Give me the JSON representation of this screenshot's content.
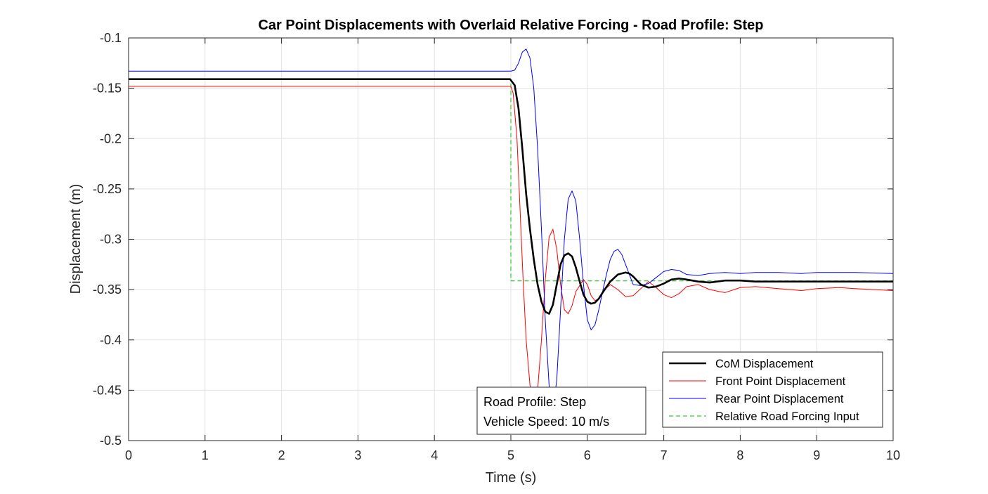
{
  "chart_data": {
    "type": "line",
    "title": "Car Point Displacements with Overlaid Relative Forcing - Road Profile: Step",
    "xlabel": "Time (s)",
    "ylabel": "Displacement (m)",
    "xlim": [
      0,
      10
    ],
    "ylim": [
      -0.5,
      -0.1
    ],
    "xticks": [
      0,
      1,
      2,
      3,
      4,
      5,
      6,
      7,
      8,
      9,
      10
    ],
    "yticks": [
      -0.1,
      -0.15,
      -0.2,
      -0.25,
      -0.3,
      -0.35,
      -0.4,
      -0.45,
      -0.5
    ],
    "grid": true,
    "legend_location": "bottom-right",
    "series": [
      {
        "name": "CoM Displacement",
        "color": "#000000",
        "style": "solid",
        "x": [
          0,
          4.99,
          5.05,
          5.1,
          5.15,
          5.2,
          5.25,
          5.3,
          5.35,
          5.4,
          5.45,
          5.5,
          5.55,
          5.6,
          5.65,
          5.7,
          5.75,
          5.8,
          5.85,
          5.9,
          5.95,
          6.0,
          6.05,
          6.1,
          6.15,
          6.2,
          6.3,
          6.4,
          6.5,
          6.55,
          6.6,
          6.7,
          6.8,
          6.9,
          7.0,
          7.1,
          7.2,
          7.3,
          7.45,
          7.6,
          7.8,
          8.0,
          8.2,
          8.5,
          9.0,
          9.5,
          10.0
        ],
        "y": [
          -0.141,
          -0.141,
          -0.147,
          -0.17,
          -0.21,
          -0.255,
          -0.29,
          -0.32,
          -0.345,
          -0.362,
          -0.372,
          -0.374,
          -0.365,
          -0.345,
          -0.325,
          -0.316,
          -0.314,
          -0.317,
          -0.328,
          -0.342,
          -0.355,
          -0.362,
          -0.364,
          -0.363,
          -0.359,
          -0.353,
          -0.342,
          -0.335,
          -0.333,
          -0.334,
          -0.337,
          -0.345,
          -0.348,
          -0.347,
          -0.344,
          -0.34,
          -0.339,
          -0.34,
          -0.342,
          -0.343,
          -0.341,
          -0.341,
          -0.342,
          -0.342,
          -0.342,
          -0.342,
          -0.342
        ]
      },
      {
        "name": "Front Point Displacement",
        "color": "#ff0000",
        "style": "solid",
        "x": [
          0,
          5.0,
          5.03,
          5.08,
          5.12,
          5.16,
          5.2,
          5.25,
          5.3,
          5.35,
          5.4,
          5.45,
          5.5,
          5.55,
          5.6,
          5.65,
          5.7,
          5.75,
          5.8,
          5.85,
          5.95,
          6.0,
          6.05,
          6.1,
          6.15,
          6.2,
          6.3,
          6.4,
          6.5,
          6.6,
          6.7,
          6.8,
          6.9,
          7.0,
          7.1,
          7.2,
          7.3,
          7.45,
          7.6,
          7.8,
          8.0,
          8.2,
          8.5,
          8.8,
          9.0,
          9.3,
          9.5,
          10.0
        ],
        "y": [
          -0.148,
          -0.148,
          -0.155,
          -0.2,
          -0.27,
          -0.34,
          -0.4,
          -0.445,
          -0.468,
          -0.45,
          -0.4,
          -0.34,
          -0.298,
          -0.29,
          -0.31,
          -0.345,
          -0.37,
          -0.374,
          -0.366,
          -0.352,
          -0.34,
          -0.345,
          -0.356,
          -0.361,
          -0.359,
          -0.352,
          -0.345,
          -0.35,
          -0.357,
          -0.356,
          -0.349,
          -0.342,
          -0.348,
          -0.355,
          -0.358,
          -0.354,
          -0.347,
          -0.345,
          -0.35,
          -0.353,
          -0.348,
          -0.347,
          -0.349,
          -0.351,
          -0.349,
          -0.348,
          -0.349,
          -0.351
        ]
      },
      {
        "name": "Rear Point Displacement",
        "color": "#0000ff",
        "style": "solid",
        "x": [
          0,
          5.0,
          5.05,
          5.1,
          5.15,
          5.2,
          5.25,
          5.3,
          5.35,
          5.4,
          5.45,
          5.5,
          5.55,
          5.6,
          5.65,
          5.7,
          5.75,
          5.8,
          5.85,
          5.9,
          5.95,
          6.0,
          6.05,
          6.1,
          6.15,
          6.2,
          6.25,
          6.3,
          6.35,
          6.4,
          6.45,
          6.5,
          6.55,
          6.6,
          6.7,
          6.8,
          6.9,
          7.0,
          7.1,
          7.2,
          7.3,
          7.45,
          7.6,
          7.8,
          8.0,
          8.2,
          8.5,
          8.8,
          9.0,
          9.3,
          9.5,
          10.0
        ],
        "y": [
          -0.133,
          -0.133,
          -0.132,
          -0.125,
          -0.114,
          -0.111,
          -0.12,
          -0.15,
          -0.21,
          -0.29,
          -0.38,
          -0.445,
          -0.47,
          -0.44,
          -0.37,
          -0.3,
          -0.26,
          -0.252,
          -0.262,
          -0.3,
          -0.345,
          -0.38,
          -0.39,
          -0.385,
          -0.37,
          -0.352,
          -0.335,
          -0.32,
          -0.312,
          -0.31,
          -0.315,
          -0.325,
          -0.335,
          -0.345,
          -0.346,
          -0.344,
          -0.338,
          -0.332,
          -0.33,
          -0.331,
          -0.335,
          -0.336,
          -0.334,
          -0.333,
          -0.334,
          -0.333,
          -0.333,
          -0.334,
          -0.333,
          -0.333,
          -0.333,
          -0.334
        ]
      },
      {
        "name": "Relative Road Forcing Input",
        "color": "#00c000",
        "style": "dashed",
        "x": [
          0,
          5.0,
          5.0,
          10.0
        ],
        "y": [
          -0.1414,
          -0.1414,
          -0.3414,
          -0.3414
        ]
      }
    ],
    "annotation": {
      "lines": [
        "Road Profile: Step",
        "Vehicle Speed: 10 m/s"
      ]
    }
  }
}
